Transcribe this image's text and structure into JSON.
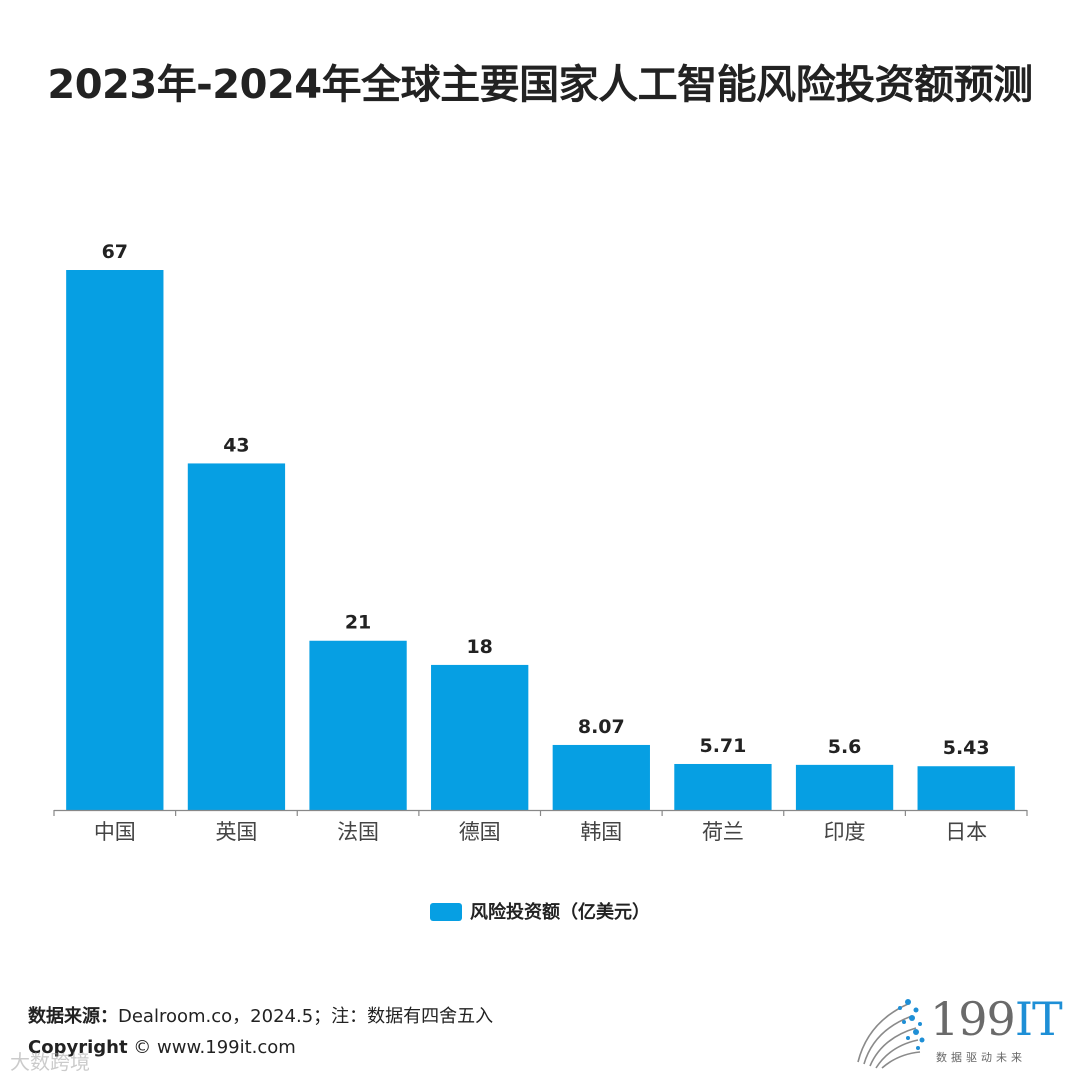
{
  "title": "2023年-2024年全球主要国家人工智能风险投资额预测",
  "chart_data": {
    "type": "bar",
    "title": "2023年-2024年全球主要国家人工智能风险投资额预测",
    "categories": [
      "中国",
      "英国",
      "法国",
      "德国",
      "韩国",
      "荷兰",
      "印度",
      "日本"
    ],
    "series": [
      {
        "name": "风险投资额（亿美元）",
        "values": [
          67,
          43,
          21,
          18,
          8.07,
          5.71,
          5.6,
          5.43
        ],
        "value_labels": [
          "67",
          "43",
          "21",
          "18",
          "8.07",
          "5.71",
          "5.6",
          "5.43"
        ]
      }
    ],
    "xlabel": "",
    "ylabel": "",
    "ylim": [
      0,
      67
    ],
    "grid": false,
    "legend": "bottom-center"
  },
  "legend": {
    "label": "风险投资额（亿美元）"
  },
  "colors": {
    "bar": "#069fe3",
    "axis": "#888888"
  },
  "source": {
    "label": "数据来源：",
    "text": "Dealroom.co，2024.5；注：数据有四舍五入"
  },
  "copyright": {
    "label": "Copyright",
    "text": "© www.199it.com"
  },
  "watermark": "大数跨境",
  "logo": {
    "main": "199",
    "accent": "IT",
    "tagline": "数据驱动未来"
  }
}
